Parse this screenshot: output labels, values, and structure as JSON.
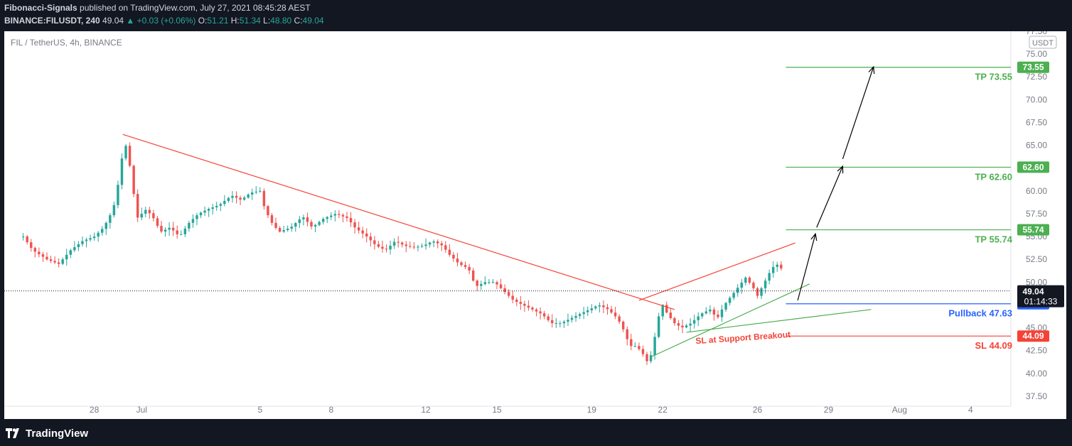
{
  "header": {
    "author": "Fibonacci-Signals",
    "published_text": "published on TradingView.com, July 27, 2021 08:45:28 AEST",
    "symbol": "BINANCE:FILUSDT, 240",
    "last": "49.04",
    "change": "+0.03 (+0.06%)",
    "o_label": "O:",
    "o": "51.21",
    "h_label": "H:",
    "h": "51.34",
    "l_label": "L:",
    "l": "48.80",
    "c_label": "C:",
    "c": "49.04"
  },
  "legend": "FIL / TetherUS, 4h, BINANCE",
  "currency_badge": "USDT",
  "footer_brand": "TradingView",
  "colors": {
    "up": "#26a69a",
    "down": "#ef5350",
    "tp": "#4caf50",
    "pullback": "#2962ff",
    "sl": "#f44336",
    "axis_text": "#787b86",
    "frame_bg": "#131722"
  },
  "chart_data": {
    "type": "candlestick",
    "ylim": [
      36.4,
      77.5
    ],
    "y_ticks": [
      "37.50",
      "40.00",
      "42.50",
      "45.00",
      "47.50",
      "50.00",
      "52.50",
      "55.00",
      "57.50",
      "60.00",
      "62.50",
      "65.00",
      "67.50",
      "70.00",
      "72.50",
      "75.00",
      "77.50"
    ],
    "x_ticks": [
      {
        "label": "28",
        "x": 28
      },
      {
        "label": "Jul",
        "x": 30
      },
      {
        "label": "5",
        "x": 35
      },
      {
        "label": "8",
        "x": 38
      },
      {
        "label": "12",
        "x": 42
      },
      {
        "label": "15",
        "x": 45
      },
      {
        "label": "19",
        "x": 49
      },
      {
        "label": "22",
        "x": 52
      },
      {
        "label": "26",
        "x": 56
      },
      {
        "label": "29",
        "x": 59
      },
      {
        "label": "Aug",
        "x": 62
      },
      {
        "label": "4",
        "x": 65
      }
    ],
    "current_price": {
      "value": 49.04,
      "label": "49.04",
      "countdown": "01:14:33"
    },
    "price_path": [
      [
        25.0,
        55.0
      ],
      [
        25.4,
        53.5
      ],
      [
        26.0,
        52.5
      ],
      [
        26.5,
        52.0
      ],
      [
        27.0,
        53.5
      ],
      [
        27.5,
        54.5
      ],
      [
        28.0,
        55.0
      ],
      [
        28.4,
        56.0
      ],
      [
        28.8,
        58.0
      ],
      [
        29.1,
        62.0
      ],
      [
        29.25,
        65.5
      ],
      [
        29.4,
        64.5
      ],
      [
        29.6,
        61.0
      ],
      [
        29.8,
        57.0
      ],
      [
        30.2,
        58.0
      ],
      [
        30.5,
        57.0
      ],
      [
        30.8,
        55.5
      ],
      [
        31.2,
        56.0
      ],
      [
        31.6,
        55.0
      ],
      [
        32.0,
        56.5
      ],
      [
        32.4,
        57.5
      ],
      [
        32.8,
        58.0
      ],
      [
        33.3,
        58.5
      ],
      [
        33.8,
        59.5
      ],
      [
        34.2,
        59.0
      ],
      [
        34.6,
        59.8
      ],
      [
        35.0,
        60.0
      ],
      [
        35.2,
        58.0
      ],
      [
        35.5,
        56.5
      ],
      [
        35.8,
        55.5
      ],
      [
        36.3,
        56.0
      ],
      [
        36.8,
        57.2
      ],
      [
        37.2,
        56.0
      ],
      [
        37.7,
        57.0
      ],
      [
        38.2,
        57.5
      ],
      [
        38.7,
        57.0
      ],
      [
        39.0,
        56.0
      ],
      [
        39.5,
        55.0
      ],
      [
        39.9,
        54.0
      ],
      [
        40.3,
        53.5
      ],
      [
        40.7,
        54.5
      ],
      [
        41.1,
        54.0
      ],
      [
        41.5,
        53.8
      ],
      [
        41.9,
        54.0
      ],
      [
        42.3,
        54.5
      ],
      [
        42.7,
        54.0
      ],
      [
        43.0,
        53.0
      ],
      [
        43.4,
        52.0
      ],
      [
        43.8,
        51.5
      ],
      [
        44.1,
        49.5
      ],
      [
        44.5,
        50.0
      ],
      [
        44.9,
        50.0
      ],
      [
        45.3,
        49.0
      ],
      [
        45.7,
        48.0
      ],
      [
        46.1,
        47.5
      ],
      [
        46.5,
        47.0
      ],
      [
        46.9,
        46.5
      ],
      [
        47.3,
        45.5
      ],
      [
        47.7,
        45.5
      ],
      [
        48.1,
        46.0
      ],
      [
        48.5,
        46.5
      ],
      [
        48.9,
        47.0
      ],
      [
        49.3,
        47.5
      ],
      [
        49.7,
        47.0
      ],
      [
        50.1,
        46.0
      ],
      [
        50.4,
        44.5
      ],
      [
        50.6,
        43.0
      ],
      [
        50.9,
        43.0
      ],
      [
        51.2,
        42.0
      ],
      [
        51.4,
        41.0
      ],
      [
        51.6,
        43.0
      ],
      [
        51.8,
        46.0
      ],
      [
        52.0,
        47.5
      ],
      [
        52.2,
        46.5
      ],
      [
        52.5,
        45.5
      ],
      [
        52.8,
        45.0
      ],
      [
        53.2,
        45.5
      ],
      [
        53.6,
        46.5
      ],
      [
        54.0,
        47.0
      ],
      [
        54.3,
        46.0
      ],
      [
        54.6,
        47.5
      ],
      [
        54.9,
        48.5
      ],
      [
        55.2,
        49.5
      ],
      [
        55.5,
        50.5
      ],
      [
        55.8,
        49.5
      ],
      [
        56.0,
        48.5
      ],
      [
        56.2,
        49.5
      ],
      [
        56.4,
        50.5
      ],
      [
        56.6,
        51.5
      ],
      [
        56.8,
        52.0
      ],
      [
        57.0,
        51.5
      ],
      [
        57.15,
        49.04
      ]
    ],
    "trendlines": [
      {
        "color": "#f44336",
        "from": [
          29.2,
          66.2
        ],
        "to": [
          52.5,
          47.0
        ]
      },
      {
        "color": "#f44336",
        "from": [
          51.0,
          48.0
        ],
        "to": [
          57.6,
          54.3
        ]
      },
      {
        "color": "#4caf50",
        "from": [
          51.5,
          41.8
        ],
        "to": [
          58.2,
          49.8
        ]
      },
      {
        "color": "#4caf50",
        "from": [
          53.0,
          44.5
        ],
        "to": [
          60.8,
          47.0
        ]
      }
    ],
    "arrows": [
      {
        "from": [
          57.7,
          48.0
        ],
        "to": [
          58.45,
          55.3
        ]
      },
      {
        "from": [
          58.5,
          56.0
        ],
        "to": [
          59.6,
          62.7
        ]
      },
      {
        "from": [
          59.6,
          63.5
        ],
        "to": [
          60.9,
          73.6
        ]
      }
    ],
    "levels": [
      {
        "label": "TP 73.55",
        "value": 73.55,
        "badge": "73.55",
        "color": "#4caf50",
        "x_start": 57.2
      },
      {
        "label": "TP 62.60",
        "value": 62.6,
        "badge": "62.60",
        "color": "#4caf50",
        "x_start": 57.2
      },
      {
        "label": "TP 55.74",
        "value": 55.74,
        "badge": "55.74",
        "color": "#4caf50",
        "x_start": 57.2
      },
      {
        "label": "Pullback 47.63",
        "value": 47.63,
        "badge": "47.63",
        "color": "#2962ff",
        "x_start": 57.2
      },
      {
        "label": "SL 44.09",
        "value": 44.09,
        "badge": "44.09",
        "color": "#f44336",
        "x_start": 57.2
      }
    ],
    "annotation": {
      "text": "SL at Support Breakout",
      "color": "#f44336",
      "at": [
        55.4,
        43.6
      ]
    }
  }
}
